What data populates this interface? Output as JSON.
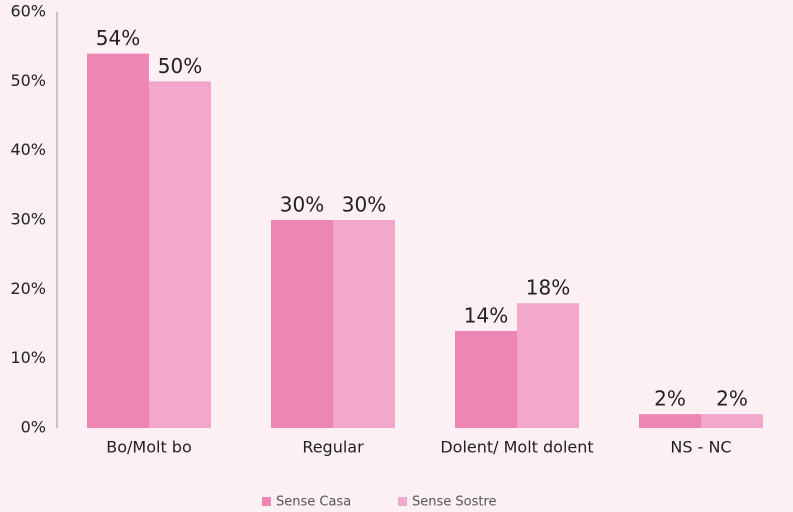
{
  "chart_data": {
    "type": "bar",
    "categories": [
      "Bo/Molt bo",
      "Regular",
      "Dolent/ Molt dolent",
      "NS - NC"
    ],
    "series": [
      {
        "name": "Sense Casa",
        "color": "#ee86b5",
        "values": [
          54,
          30,
          14,
          2
        ],
        "value_labels": [
          "54%",
          "30%",
          "14%",
          "2%"
        ]
      },
      {
        "name": "Sense Sostre",
        "color": "#f3a7ca",
        "values": [
          50,
          30,
          18,
          2
        ],
        "value_labels": [
          "50%",
          "30%",
          "18%",
          "2%"
        ]
      }
    ],
    "ylim": [
      0,
      60
    ],
    "yticks": [
      {
        "value": 0,
        "label": "0%"
      },
      {
        "value": 10,
        "label": "10%"
      },
      {
        "value": 20,
        "label": "20%"
      },
      {
        "value": 30,
        "label": "30%"
      },
      {
        "value": 40,
        "label": "40%"
      },
      {
        "value": 50,
        "label": "50%"
      },
      {
        "value": 60,
        "label": "60%"
      }
    ],
    "grid": false,
    "legend": "bottom"
  }
}
